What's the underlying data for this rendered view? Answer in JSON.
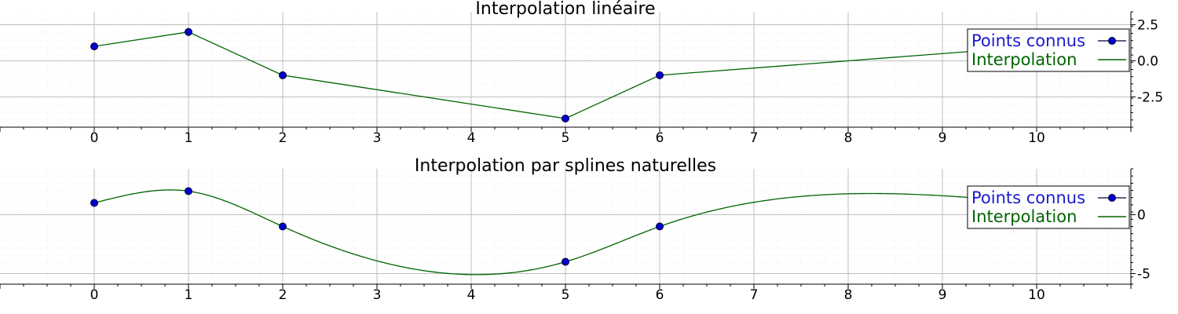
{
  "chart_data": [
    {
      "type": "line",
      "title": "Interpolation linéaire",
      "xlabel": "",
      "ylabel": "",
      "xlim": [
        -1,
        11
      ],
      "ylim": [
        -4.6,
        3.4
      ],
      "x_ticks": [
        0,
        1,
        2,
        3,
        4,
        5,
        6,
        7,
        8,
        9,
        10
      ],
      "x_tick_labels": [
        "0",
        "1",
        "2",
        "3",
        "4",
        "5",
        "6",
        "7",
        "8",
        "9",
        "10"
      ],
      "y_ticks": [
        2.5,
        0,
        -2.5
      ],
      "y_tick_labels": [
        "2.5",
        "0.0",
        "-2.5"
      ],
      "grid": true,
      "legend_position": "top-right",
      "series": [
        {
          "name": "Points connus",
          "style": "markers",
          "color": "#00008b",
          "points": [
            [
              0,
              1
            ],
            [
              1,
              2
            ],
            [
              2,
              -1
            ],
            [
              5,
              -4
            ],
            [
              6,
              -1
            ]
          ]
        },
        {
          "name": "Interpolation",
          "style": "line",
          "color": "#006400",
          "points": [
            [
              0,
              1
            ],
            [
              1,
              2
            ],
            [
              2,
              -1
            ],
            [
              5,
              -4
            ],
            [
              6,
              -1
            ],
            [
              10,
              1
            ]
          ]
        }
      ]
    },
    {
      "type": "line",
      "title": "Interpolation par splines naturelles",
      "xlabel": "",
      "ylabel": "",
      "xlim": [
        -1,
        11
      ],
      "ylim": [
        -5.9,
        3.9
      ],
      "x_ticks": [
        0,
        1,
        2,
        3,
        4,
        5,
        6,
        7,
        8,
        9,
        10
      ],
      "x_tick_labels": [
        "0",
        "1",
        "2",
        "3",
        "4",
        "5",
        "6",
        "7",
        "8",
        "9",
        "10"
      ],
      "y_ticks": [
        0,
        -5
      ],
      "y_tick_labels": [
        "0",
        "-5"
      ],
      "grid": true,
      "legend_position": "top-right",
      "series": [
        {
          "name": "Points connus",
          "style": "markers",
          "color": "#00008b",
          "points": [
            [
              0,
              1
            ],
            [
              1,
              2
            ],
            [
              2,
              -1
            ],
            [
              5,
              -4
            ],
            [
              6,
              -1
            ]
          ]
        },
        {
          "name": "Interpolation",
          "style": "spline",
          "color": "#006400",
          "points": [
            [
              0,
              1
            ],
            [
              1,
              2
            ],
            [
              2,
              -1
            ],
            [
              5,
              -4
            ],
            [
              6,
              -1
            ],
            [
              10,
              1
            ]
          ]
        }
      ]
    }
  ]
}
